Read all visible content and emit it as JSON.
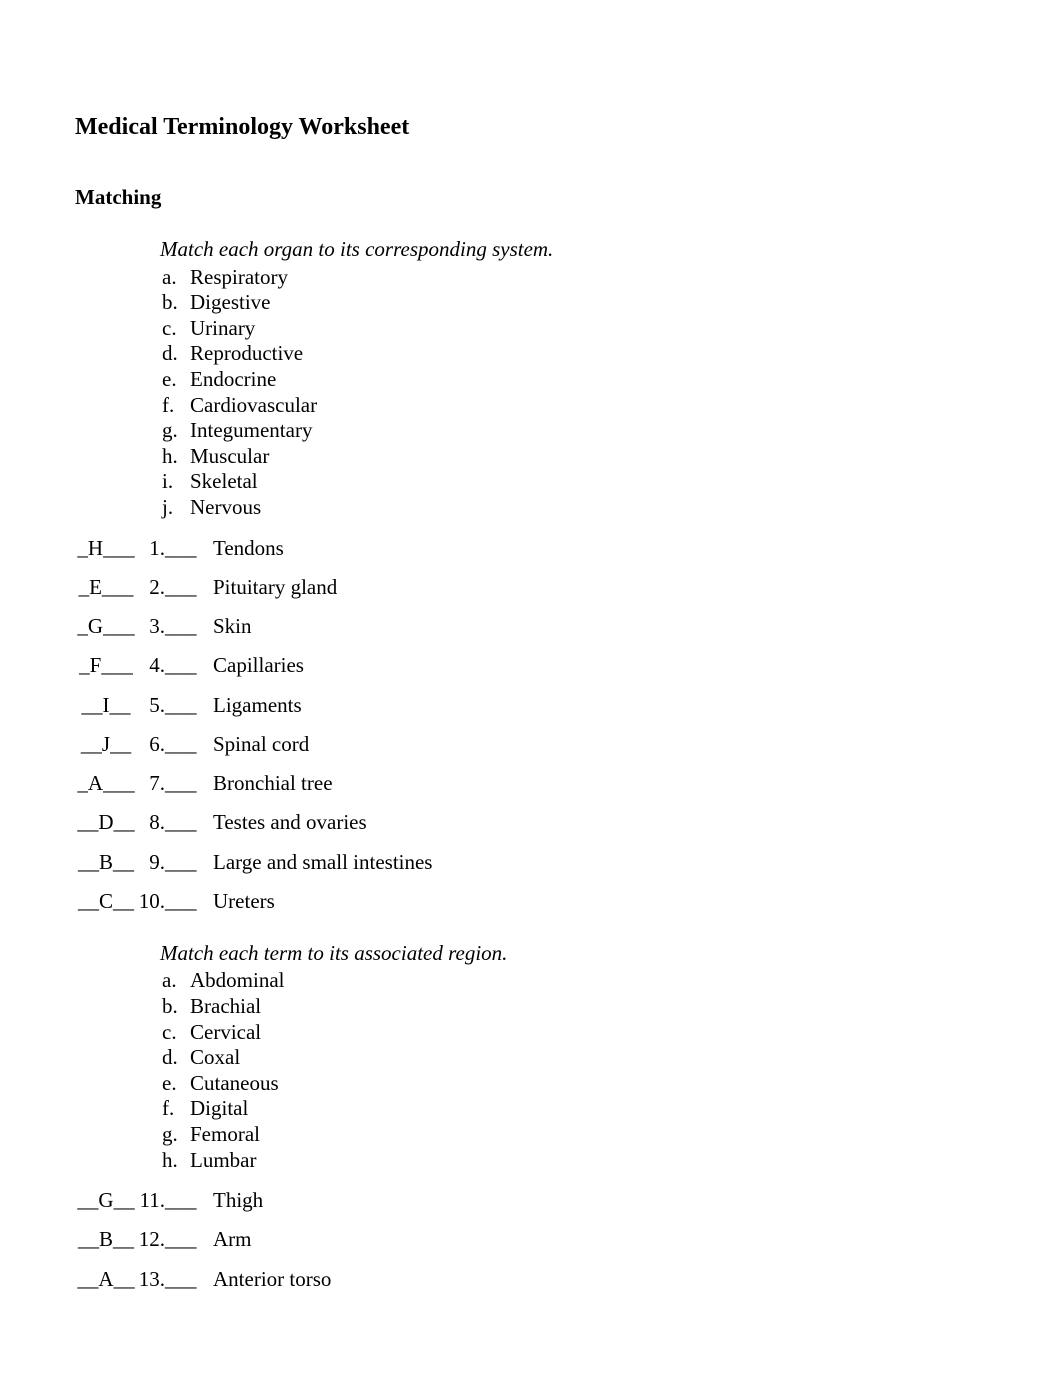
{
  "document": {
    "title": "Medical Terminology Worksheet",
    "section_heading": "Matching",
    "colors": {
      "background": "#ffffff",
      "text": "#000000"
    },
    "typography": {
      "font_family": "Times New Roman",
      "body_fontsize_pt": 16,
      "title_fontsize_pt": 18,
      "title_weight": "bold",
      "heading_weight": "bold"
    },
    "group1": {
      "instruction": "Match each organ to its corresponding system.",
      "options": [
        {
          "letter": "a",
          "text": "Respiratory"
        },
        {
          "letter": "b",
          "text": "Digestive"
        },
        {
          "letter": "c",
          "text": "Urinary"
        },
        {
          "letter": "d",
          "text": "Reproductive"
        },
        {
          "letter": "e",
          "text": "Endocrine"
        },
        {
          "letter": "f",
          "text": "Cardiovascular"
        },
        {
          "letter": "g",
          "text": "Integumentary"
        },
        {
          "letter": "h",
          "text": "Muscular"
        },
        {
          "letter": "i",
          "text": "Skeletal"
        },
        {
          "letter": "j",
          "text": "Nervous"
        }
      ],
      "questions": [
        {
          "answer": "_H___",
          "num": "1",
          "blank": "___",
          "text": "Tendons"
        },
        {
          "answer": "_E___",
          "num": "2",
          "blank": "___",
          "text": "Pituitary gland"
        },
        {
          "answer": "_G___",
          "num": "3",
          "blank": "___",
          "text": "Skin"
        },
        {
          "answer": "_F___",
          "num": "4",
          "blank": "___",
          "text": "Capillaries"
        },
        {
          "answer": "__I__",
          "num": "5",
          "blank": "___",
          "text": "Ligaments"
        },
        {
          "answer": "__J__",
          "num": "6",
          "blank": "___",
          "text": "Spinal cord"
        },
        {
          "answer": "_A___",
          "num": "7",
          "blank": "___",
          "text": "Bronchial tree"
        },
        {
          "answer": "__D__",
          "num": "8",
          "blank": "___",
          "text": "Testes and ovaries"
        },
        {
          "answer": "__B__",
          "num": "9",
          "blank": "___",
          "text": "Large and small intestines"
        },
        {
          "answer": "__C__",
          "num": "10",
          "blank": "___",
          "text": "Ureters"
        }
      ]
    },
    "group2": {
      "instruction": "Match each term to its associated region.",
      "options": [
        {
          "letter": "a",
          "text": "Abdominal"
        },
        {
          "letter": "b",
          "text": "Brachial"
        },
        {
          "letter": "c",
          "text": "Cervical"
        },
        {
          "letter": "d",
          "text": "Coxal"
        },
        {
          "letter": "e",
          "text": "Cutaneous"
        },
        {
          "letter": "f",
          "text": "Digital"
        },
        {
          "letter": "g",
          "text": "Femoral"
        },
        {
          "letter": "h",
          "text": "Lumbar"
        }
      ],
      "questions": [
        {
          "answer": "__G__",
          "num": "11",
          "blank": "___",
          "text": "Thigh"
        },
        {
          "answer": "__B__",
          "num": "12",
          "blank": "___",
          "text": "Arm"
        },
        {
          "answer": "__A__",
          "num": "13",
          "blank": "___",
          "text": "Anterior torso"
        }
      ]
    }
  }
}
